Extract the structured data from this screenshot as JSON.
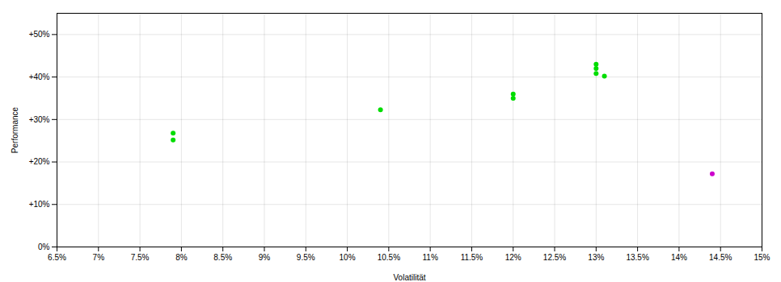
{
  "chart_data": {
    "type": "scatter",
    "xlabel": "Volatilität",
    "ylabel": "Performance",
    "xlim": [
      0.065,
      0.15
    ],
    "ylim": [
      0.0,
      0.55
    ],
    "xticks": [
      {
        "value": 0.065,
        "label": "6.5%"
      },
      {
        "value": 0.07,
        "label": "7%"
      },
      {
        "value": 0.075,
        "label": "7.5%"
      },
      {
        "value": 0.08,
        "label": "8%"
      },
      {
        "value": 0.085,
        "label": "8.5%"
      },
      {
        "value": 0.09,
        "label": "9%"
      },
      {
        "value": 0.095,
        "label": "9.5%"
      },
      {
        "value": 0.1,
        "label": "10%"
      },
      {
        "value": 0.105,
        "label": "10.5%"
      },
      {
        "value": 0.11,
        "label": "11%"
      },
      {
        "value": 0.115,
        "label": "11.5%"
      },
      {
        "value": 0.12,
        "label": "12%"
      },
      {
        "value": 0.125,
        "label": "12.5%"
      },
      {
        "value": 0.13,
        "label": "13%"
      },
      {
        "value": 0.135,
        "label": "13.5%"
      },
      {
        "value": 0.14,
        "label": "14%"
      },
      {
        "value": 0.145,
        "label": "14.5%"
      },
      {
        "value": 0.15,
        "label": "15%"
      }
    ],
    "yticks": [
      {
        "value": 0.0,
        "label": "0%"
      },
      {
        "value": 0.1,
        "label": "+10%"
      },
      {
        "value": 0.2,
        "label": "+20%"
      },
      {
        "value": 0.3,
        "label": "+30%"
      },
      {
        "value": 0.4,
        "label": "+40%"
      },
      {
        "value": 0.5,
        "label": "+50%"
      }
    ],
    "grid": true,
    "series": [
      {
        "color": "#00dd00",
        "x": [
          0.079,
          0.079,
          0.104,
          0.12,
          0.12,
          0.13,
          0.13,
          0.13,
          0.131
        ],
        "values": [
          0.268,
          0.252,
          0.323,
          0.36,
          0.35,
          0.43,
          0.42,
          0.408,
          0.402
        ]
      },
      {
        "color": "#cc00cc",
        "x": [
          0.144
        ],
        "values": [
          0.172
        ]
      }
    ]
  }
}
